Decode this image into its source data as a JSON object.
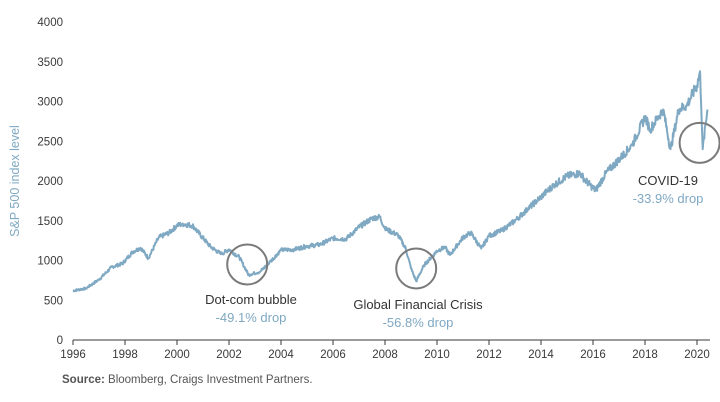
{
  "colors": {
    "line": "#7fa8c2",
    "circle": "#7a7a7a",
    "drop_text": "#7fa8c2",
    "axis": "#3a3a3a"
  },
  "source": {
    "label": "Source:",
    "text": "Bloomberg, Craigs Investment Partners."
  },
  "chart_data": {
    "type": "line",
    "ylabel": "S&P 500 index level",
    "xlabel": "",
    "xlim": [
      1996,
      2020.5
    ],
    "ylim": [
      0,
      4000
    ],
    "x_ticks": [
      "1996",
      "1998",
      "2000",
      "2002",
      "2004",
      "2006",
      "2008",
      "2010",
      "2012",
      "2014",
      "2016",
      "2018",
      "2020"
    ],
    "y_ticks": [
      "0",
      "500",
      "1000",
      "1500",
      "2000",
      "2500",
      "3000",
      "3500",
      "4000"
    ],
    "grid": false,
    "series": [
      {
        "x": [
          1996.0,
          1996.5,
          1997.0,
          1997.5,
          1997.9,
          1998.3,
          1998.6,
          1998.9,
          1999.3,
          1999.7,
          2000.0,
          2000.2,
          2000.6,
          2000.9,
          2001.3,
          2001.7,
          2002.0,
          2002.4,
          2002.75,
          2003.2,
          2003.6,
          2004.0,
          2004.5,
          2005.0,
          2005.5,
          2006.0,
          2006.5,
          2007.0,
          2007.5,
          2007.8,
          2008.0,
          2008.5,
          2008.8,
          2009.0,
          2009.2,
          2009.5,
          2010.0,
          2010.3,
          2010.5,
          2011.0,
          2011.3,
          2011.7,
          2012.0,
          2012.5,
          2013.0,
          2013.5,
          2014.0,
          2014.5,
          2015.0,
          2015.5,
          2015.7,
          2016.1,
          2016.5,
          2017.0,
          2017.5,
          2018.0,
          2018.2,
          2018.7,
          2018.98,
          2019.3,
          2019.6,
          2020.0,
          2020.12,
          2020.22,
          2020.4
        ],
        "values": [
          620,
          650,
          760,
          920,
          960,
          1110,
          1160,
          1030,
          1290,
          1350,
          1440,
          1460,
          1440,
          1320,
          1170,
          1080,
          1140,
          1040,
          820,
          860,
          990,
          1130,
          1140,
          1180,
          1200,
          1280,
          1270,
          1420,
          1530,
          1550,
          1400,
          1320,
          1150,
          900,
          740,
          940,
          1120,
          1170,
          1070,
          1290,
          1350,
          1150,
          1310,
          1380,
          1500,
          1650,
          1800,
          1950,
          2060,
          2100,
          2010,
          1880,
          2100,
          2270,
          2450,
          2800,
          2650,
          2900,
          2400,
          2900,
          2950,
          3200,
          3380,
          2400,
          2900
        ]
      }
    ],
    "annotations": [
      {
        "name": "dotcom",
        "x": 2002.7,
        "y": 950,
        "title": "Dot-com bubble",
        "drop": "-49.1% drop"
      },
      {
        "name": "gfc",
        "x": 2009.2,
        "y": 900,
        "title": "Global Financial Crisis",
        "drop": "-56.8% drop"
      },
      {
        "name": "covid",
        "x": 2020.1,
        "y": 2480,
        "title": "COVID-19",
        "drop": "-33.9% drop"
      }
    ]
  }
}
